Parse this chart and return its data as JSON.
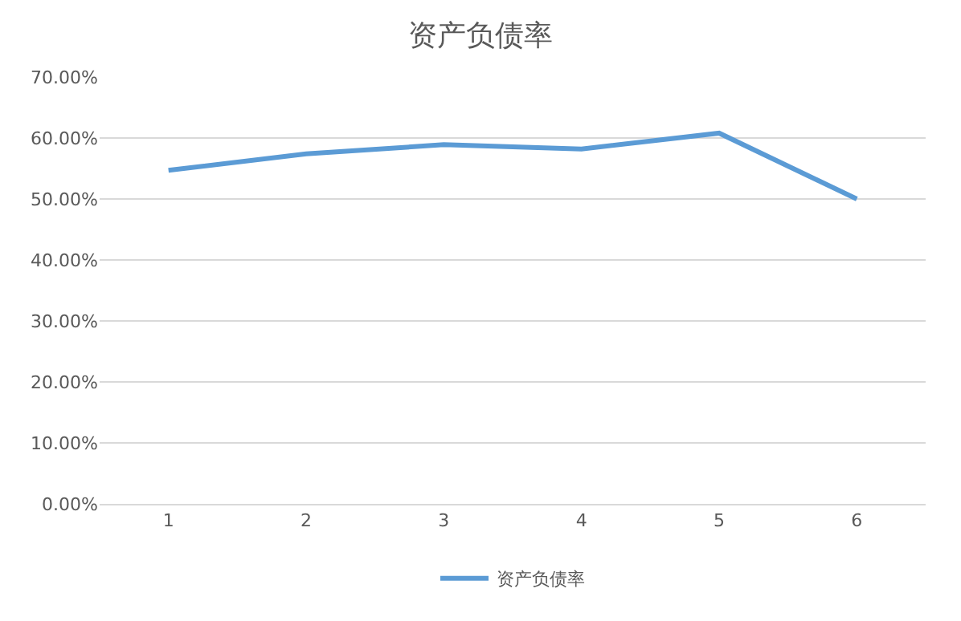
{
  "chart_data": {
    "type": "line",
    "title": "资产负债率",
    "categories": [
      "1",
      "2",
      "3",
      "4",
      "5",
      "6"
    ],
    "series": [
      {
        "name": "资产负债率",
        "color": "#5b9bd5",
        "values": [
          54.7,
          57.4,
          58.9,
          58.2,
          60.8,
          50.0
        ]
      }
    ],
    "ylim": [
      0,
      70
    ],
    "yticks": [
      {
        "value": 0,
        "label": "0.00%"
      },
      {
        "value": 10,
        "label": "10.00%"
      },
      {
        "value": 20,
        "label": "20.00%"
      },
      {
        "value": 30,
        "label": "30.00%"
      },
      {
        "value": 40,
        "label": "40.00%"
      },
      {
        "value": 50,
        "label": "50.00%"
      },
      {
        "value": 60,
        "label": "60.00%"
      },
      {
        "value": 70,
        "label": "70.00%"
      }
    ],
    "grid": "y",
    "legend": "bottom",
    "marker": "none",
    "line_style": "solid"
  }
}
